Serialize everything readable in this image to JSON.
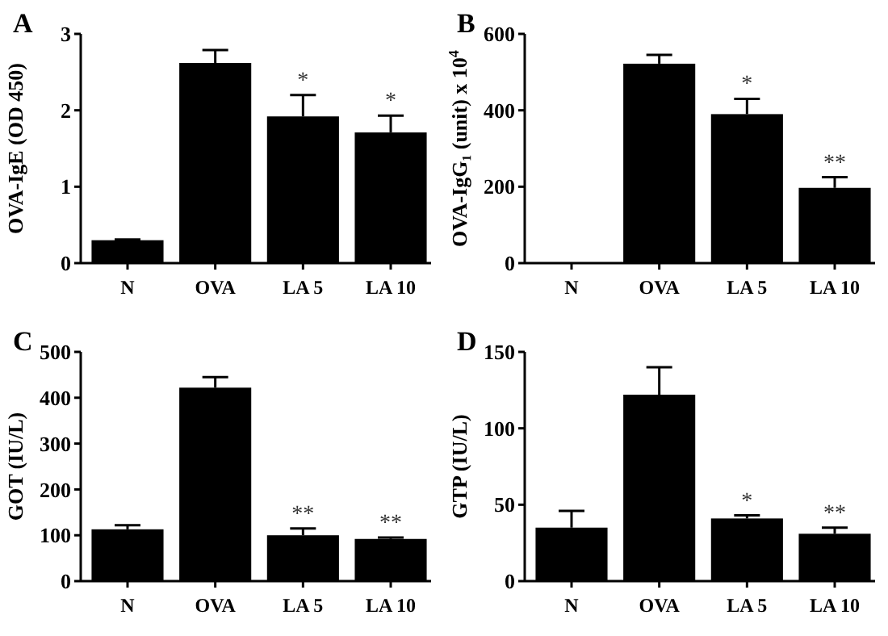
{
  "chart_data": [
    {
      "type": "bar",
      "title": "A",
      "ylabel": "OVA-IgE (OD 450)",
      "categories": [
        "N",
        "OVA",
        "LA 5",
        "LA 10"
      ],
      "values": [
        0.3,
        2.62,
        1.92,
        1.71
      ],
      "color": "#000000",
      "errors": [
        [
          0.3,
          0.31
        ],
        [
          2.62,
          2.79
        ],
        [
          1.92,
          2.2
        ],
        [
          1.71,
          1.93
        ]
      ],
      "ylim": [
        0,
        3
      ],
      "yticks": [
        0,
        1,
        2,
        3
      ],
      "grid": false,
      "annotations": [
        {
          "text": "*",
          "x": "LA 5",
          "y": 2.2
        },
        {
          "text": "*",
          "x": "LA 10",
          "y": 1.93
        }
      ]
    },
    {
      "type": "bar",
      "title": "B",
      "ylabel": "OVA-IgG₁ (unit) x 10$^{4}$",
      "categories": [
        "N",
        "OVA",
        "LA 5",
        "LA 10"
      ],
      "values": [
        0,
        522,
        390,
        197
      ],
      "color": "#000000",
      "errors": [
        null,
        [
          522,
          545
        ],
        [
          390,
          430
        ],
        [
          197,
          225
        ]
      ],
      "ylim": [
        0,
        600
      ],
      "yticks": [
        0,
        200,
        400,
        600
      ],
      "grid": false,
      "annotations": [
        {
          "text": "*",
          "x": "LA 5",
          "y": 430
        },
        {
          "text": "**",
          "x": "LA 10",
          "y": 225
        }
      ]
    },
    {
      "type": "bar",
      "title": "C",
      "ylabel": "GOT (IU/L)",
      "categories": [
        "N",
        "OVA",
        "LA 5",
        "LA 10"
      ],
      "values": [
        113,
        422,
        100,
        92
      ],
      "color": "#000000",
      "errors": [
        [
          113,
          122
        ],
        [
          422,
          445
        ],
        [
          100,
          115
        ],
        [
          92,
          95
        ]
      ],
      "ylim": [
        0,
        500
      ],
      "yticks": [
        0,
        100,
        200,
        300,
        400,
        500
      ],
      "grid": false,
      "annotations": [
        {
          "text": "**",
          "x": "LA 5",
          "y": 115
        },
        {
          "text": "**",
          "x": "LA 10",
          "y": 95
        }
      ]
    },
    {
      "type": "bar",
      "title": "D",
      "ylabel": "GTP (IU/L)",
      "categories": [
        "N",
        "OVA",
        "LA 5",
        "LA 10"
      ],
      "values": [
        35,
        122,
        41,
        31
      ],
      "color": "#000000",
      "errors": [
        [
          35,
          46
        ],
        [
          122,
          140
        ],
        [
          41,
          43
        ],
        [
          31,
          35
        ]
      ],
      "ylim": [
        0,
        150
      ],
      "yticks": [
        0,
        50,
        100,
        150
      ],
      "grid": false,
      "annotations": [
        {
          "text": "*",
          "x": "LA 5",
          "y": 43
        },
        {
          "text": "**",
          "x": "LA 10",
          "y": 35
        }
      ]
    }
  ]
}
